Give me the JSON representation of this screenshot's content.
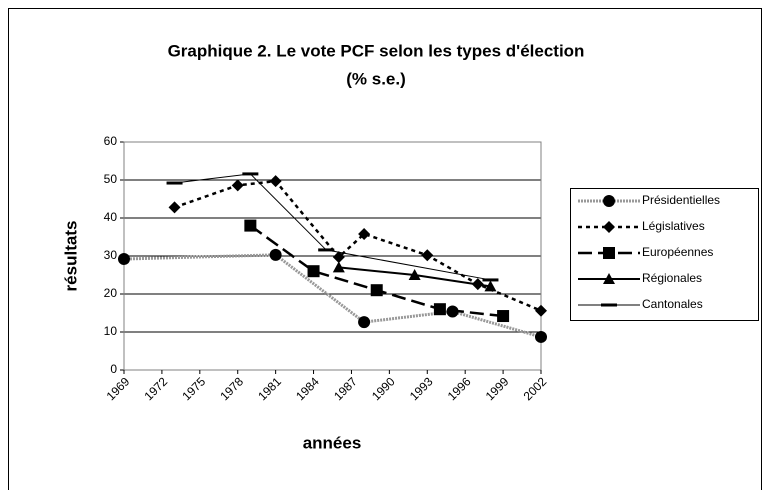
{
  "chart_data": {
    "type": "line",
    "title": "Graphique 2. Le vote PCF selon les types d'élection",
    "subtitle": "(% s.e.)",
    "xlabel": "années",
    "ylabel": "résultats",
    "xlim": [
      1969,
      2002
    ],
    "xticks": [
      1969,
      1972,
      1975,
      1978,
      1981,
      1984,
      1987,
      1990,
      1993,
      1996,
      1999,
      2002
    ],
    "ylim": [
      0,
      60
    ],
    "yticks": [
      0,
      10,
      20,
      30,
      40,
      50,
      60
    ],
    "grid": true,
    "legend": "right",
    "series": [
      {
        "name": "Présidentielles",
        "color": "#999999",
        "x": [
          1969,
          1981,
          1988,
          1995,
          2002
        ],
        "values": [
          29.2,
          30.3,
          12.6,
          15.4,
          8.7
        ]
      },
      {
        "name": "Législatives",
        "color": "#000000",
        "x": [
          1973,
          1978,
          1981,
          1986,
          1988,
          1993,
          1997,
          2002
        ],
        "values": [
          42.8,
          48.6,
          49.7,
          29.7,
          35.8,
          30.2,
          22.6,
          15.6
        ]
      },
      {
        "name": "Européennes",
        "color": "#000000",
        "x": [
          1979,
          1984,
          1989,
          1994,
          1999
        ],
        "values": [
          38,
          26,
          21,
          16,
          14.2
        ]
      },
      {
        "name": "Régionales",
        "color": "#000000",
        "x": [
          1986,
          1992,
          1998
        ],
        "values": [
          27,
          25,
          22
        ]
      },
      {
        "name": "Cantonales",
        "color": "#000000",
        "x": [
          1973,
          1979,
          1985,
          1998
        ],
        "values": [
          49.2,
          51.6,
          31.6,
          23.7
        ]
      }
    ]
  }
}
